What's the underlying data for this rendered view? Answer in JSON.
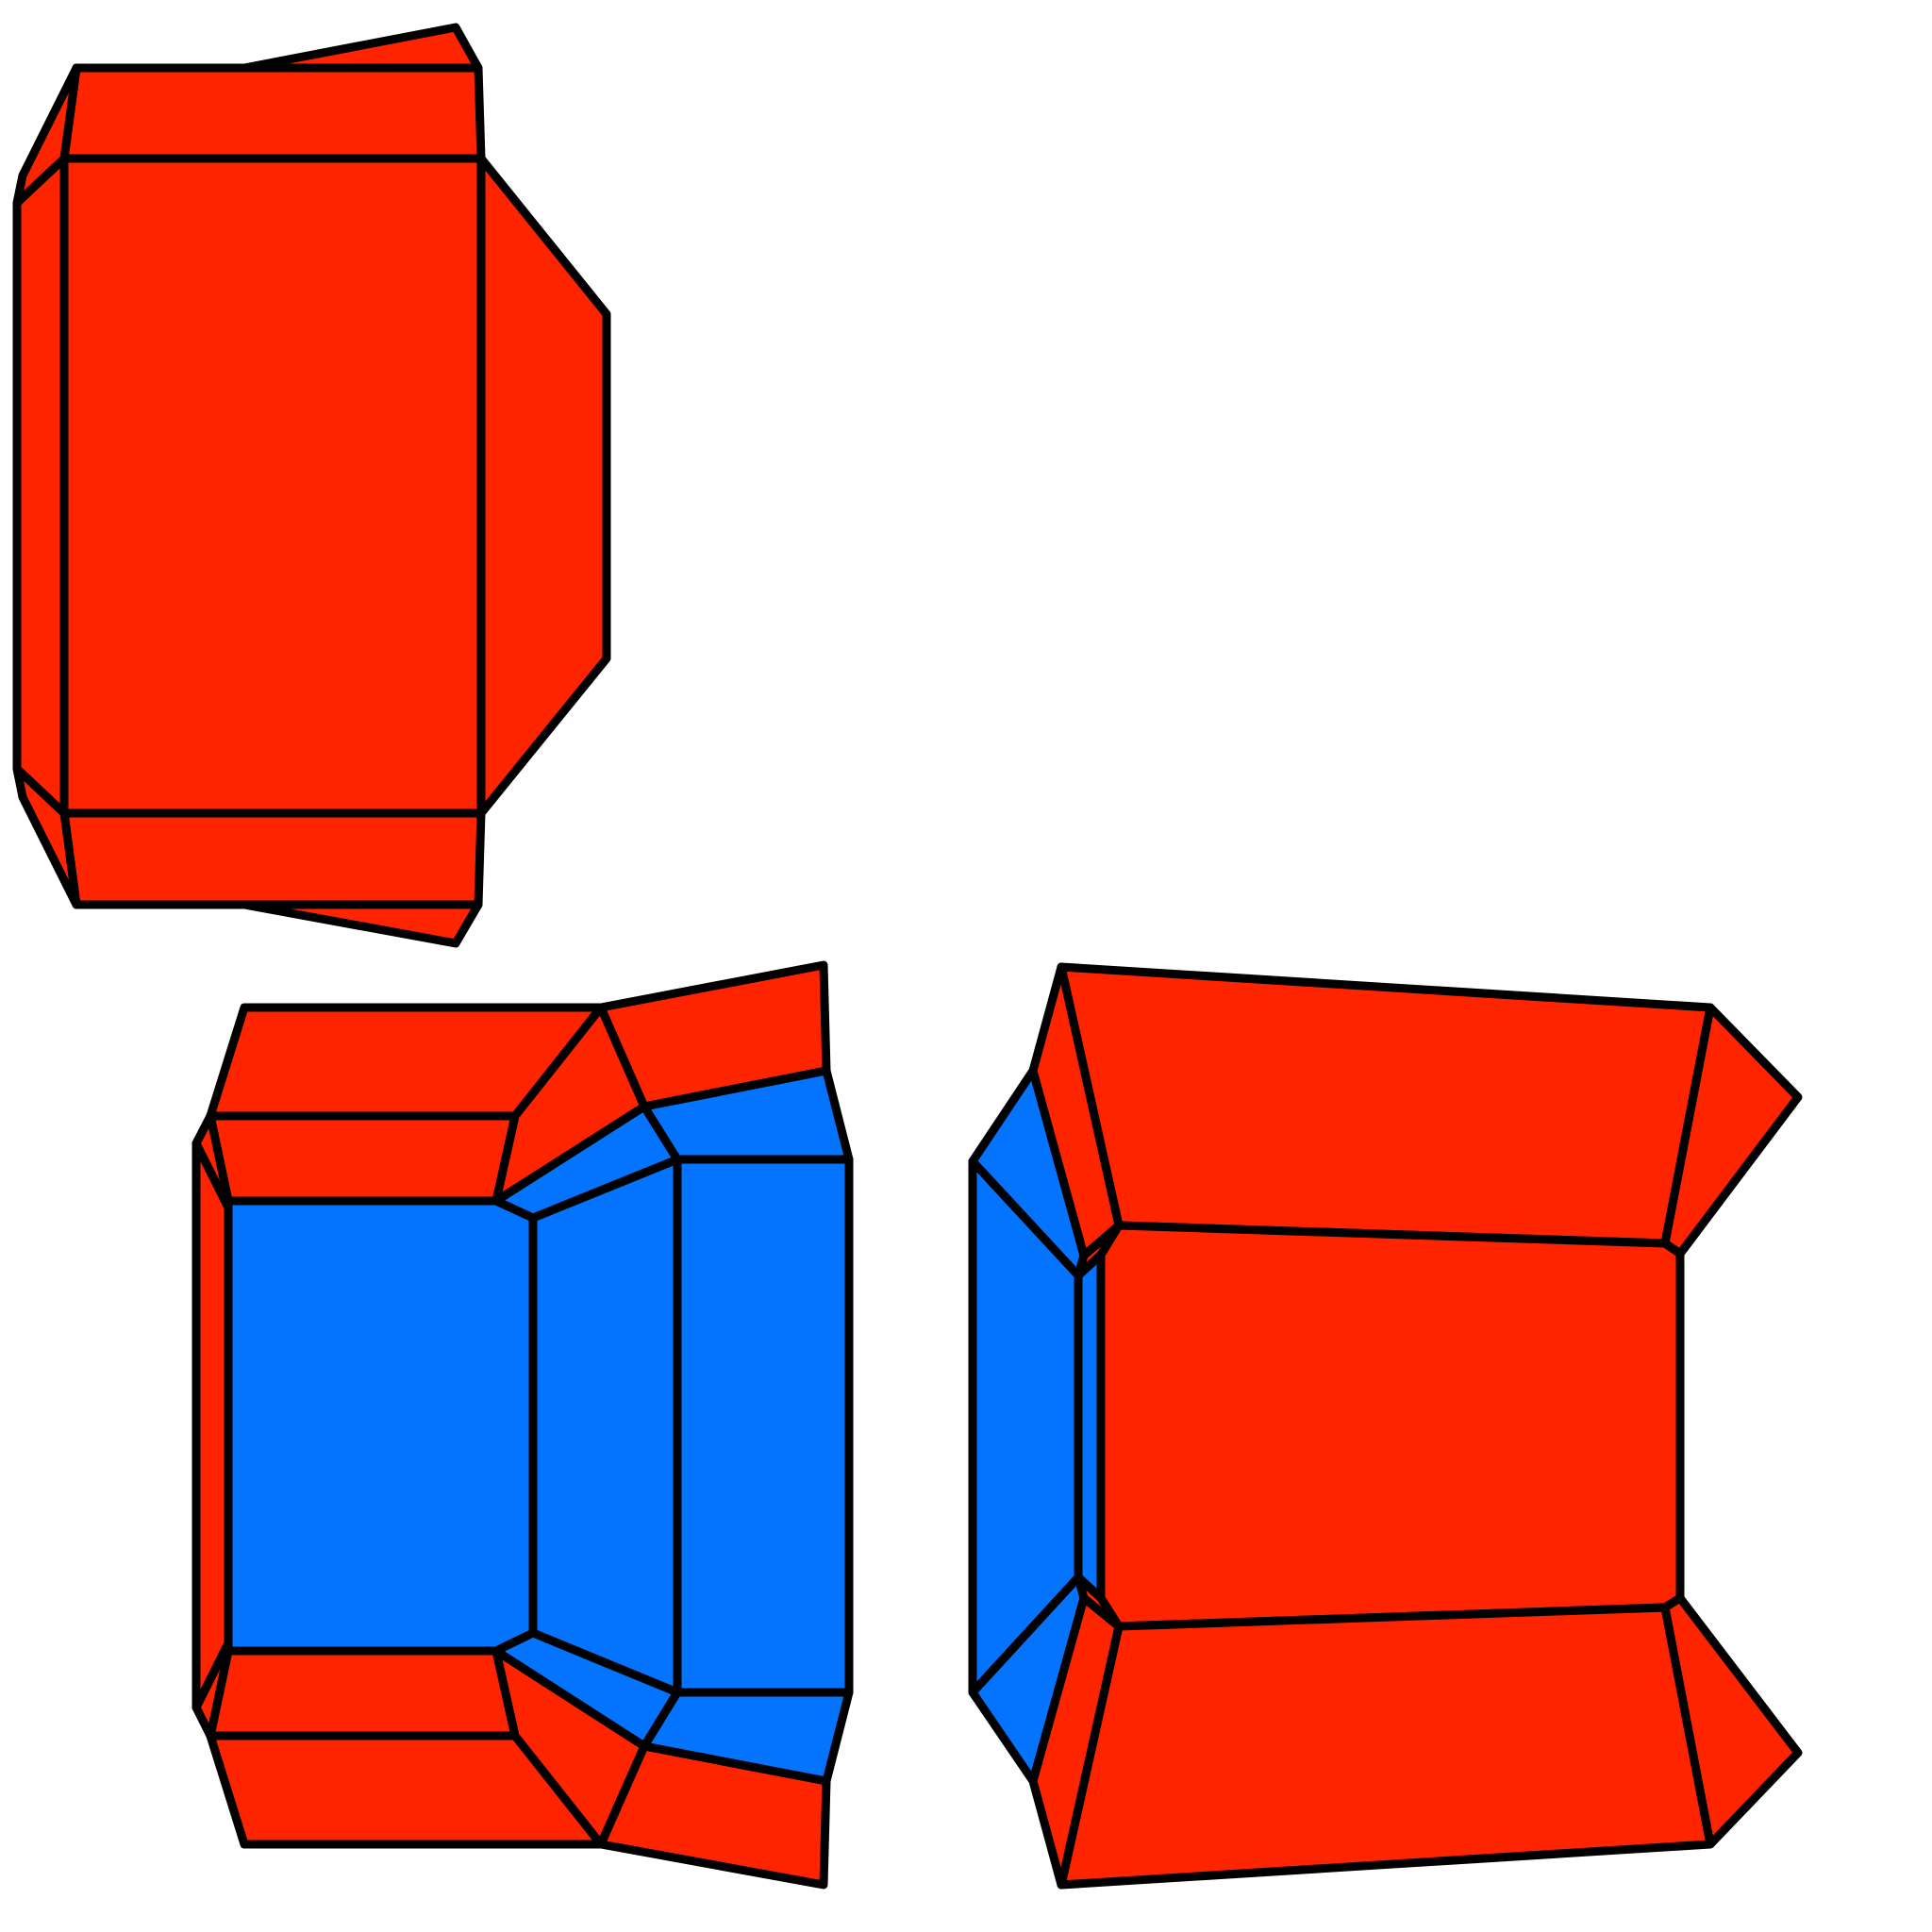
{
  "diagram": {
    "colors": {
      "red": "#FF2400",
      "blue": "#0474FF",
      "outline": "#000000",
      "background": "#FFFFFF"
    },
    "views": [
      {
        "name": "top-left-view",
        "fill": "red"
      },
      {
        "name": "bottom-left-view",
        "fills": [
          "red",
          "blue"
        ]
      },
      {
        "name": "bottom-right-view",
        "fills": [
          "red",
          "blue"
        ]
      }
    ]
  }
}
